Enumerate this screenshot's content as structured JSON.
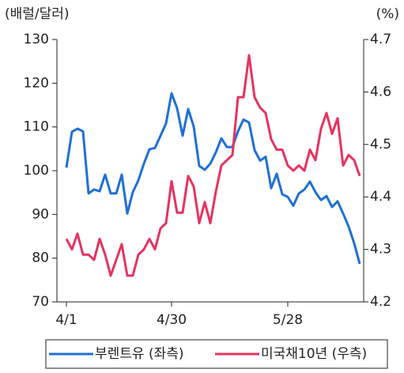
{
  "chart_data": {
    "type": "line",
    "y_label": "(배럴/달러)",
    "y2_label": "(%)",
    "categories": [
      "4/1",
      null,
      null,
      null,
      null,
      null,
      null,
      null,
      null,
      null,
      null,
      null,
      null,
      null,
      null,
      null,
      null,
      null,
      null,
      "4/30",
      null,
      null,
      null,
      null,
      null,
      null,
      null,
      null,
      null,
      null,
      null,
      null,
      null,
      null,
      null,
      null,
      null,
      null,
      null,
      null,
      "5/28",
      null,
      null,
      null,
      null,
      null,
      null,
      null,
      null,
      null,
      null,
      null,
      null,
      null
    ],
    "ylim": [
      70,
      130
    ],
    "yticks": [
      70,
      80,
      90,
      100,
      110,
      120,
      130
    ],
    "y2lim": [
      4.2,
      4.7
    ],
    "y2ticks": [
      4.2,
      4.3,
      4.4,
      4.5,
      4.6,
      4.7
    ],
    "legend": "bottom",
    "series": [
      {
        "name": "부렌트유 (좌측)",
        "color": "#1f6fd6",
        "values": [
          100.7,
          108.9,
          109.6,
          109,
          94.8,
          95.7,
          95.3,
          99.1,
          94.8,
          94.8,
          99.1,
          90.2,
          95.1,
          97.8,
          101.6,
          104.9,
          105.2,
          108,
          110.8,
          117.7,
          114.3,
          108,
          114.1,
          110.1,
          101.1,
          100.2,
          101.6,
          104.2,
          107.4,
          105.4,
          105.4,
          109,
          111.7,
          111,
          104.7,
          102.3,
          103.2,
          96,
          99.3,
          94.6,
          94,
          92,
          94.8,
          95.7,
          97.5,
          95.1,
          93.3,
          94.2,
          91.7,
          93,
          90.2,
          87.2,
          83.4,
          78.7
        ]
      },
      {
        "name": "미국채10년 (우측)",
        "color": "#e6335f",
        "axis": "y2",
        "values": [
          4.32,
          4.3,
          4.33,
          4.29,
          4.29,
          4.28,
          4.32,
          4.29,
          4.25,
          4.28,
          4.31,
          4.25,
          4.25,
          4.29,
          4.3,
          4.32,
          4.3,
          4.34,
          4.35,
          4.43,
          4.37,
          4.37,
          4.44,
          4.42,
          4.35,
          4.39,
          4.35,
          4.41,
          4.46,
          4.47,
          4.48,
          4.59,
          4.59,
          4.67,
          4.59,
          4.57,
          4.56,
          4.51,
          4.49,
          4.49,
          4.46,
          4.45,
          4.46,
          4.45,
          4.49,
          4.47,
          4.53,
          4.56,
          4.52,
          4.55,
          4.46,
          4.48,
          4.47,
          4.44
        ]
      }
    ]
  }
}
